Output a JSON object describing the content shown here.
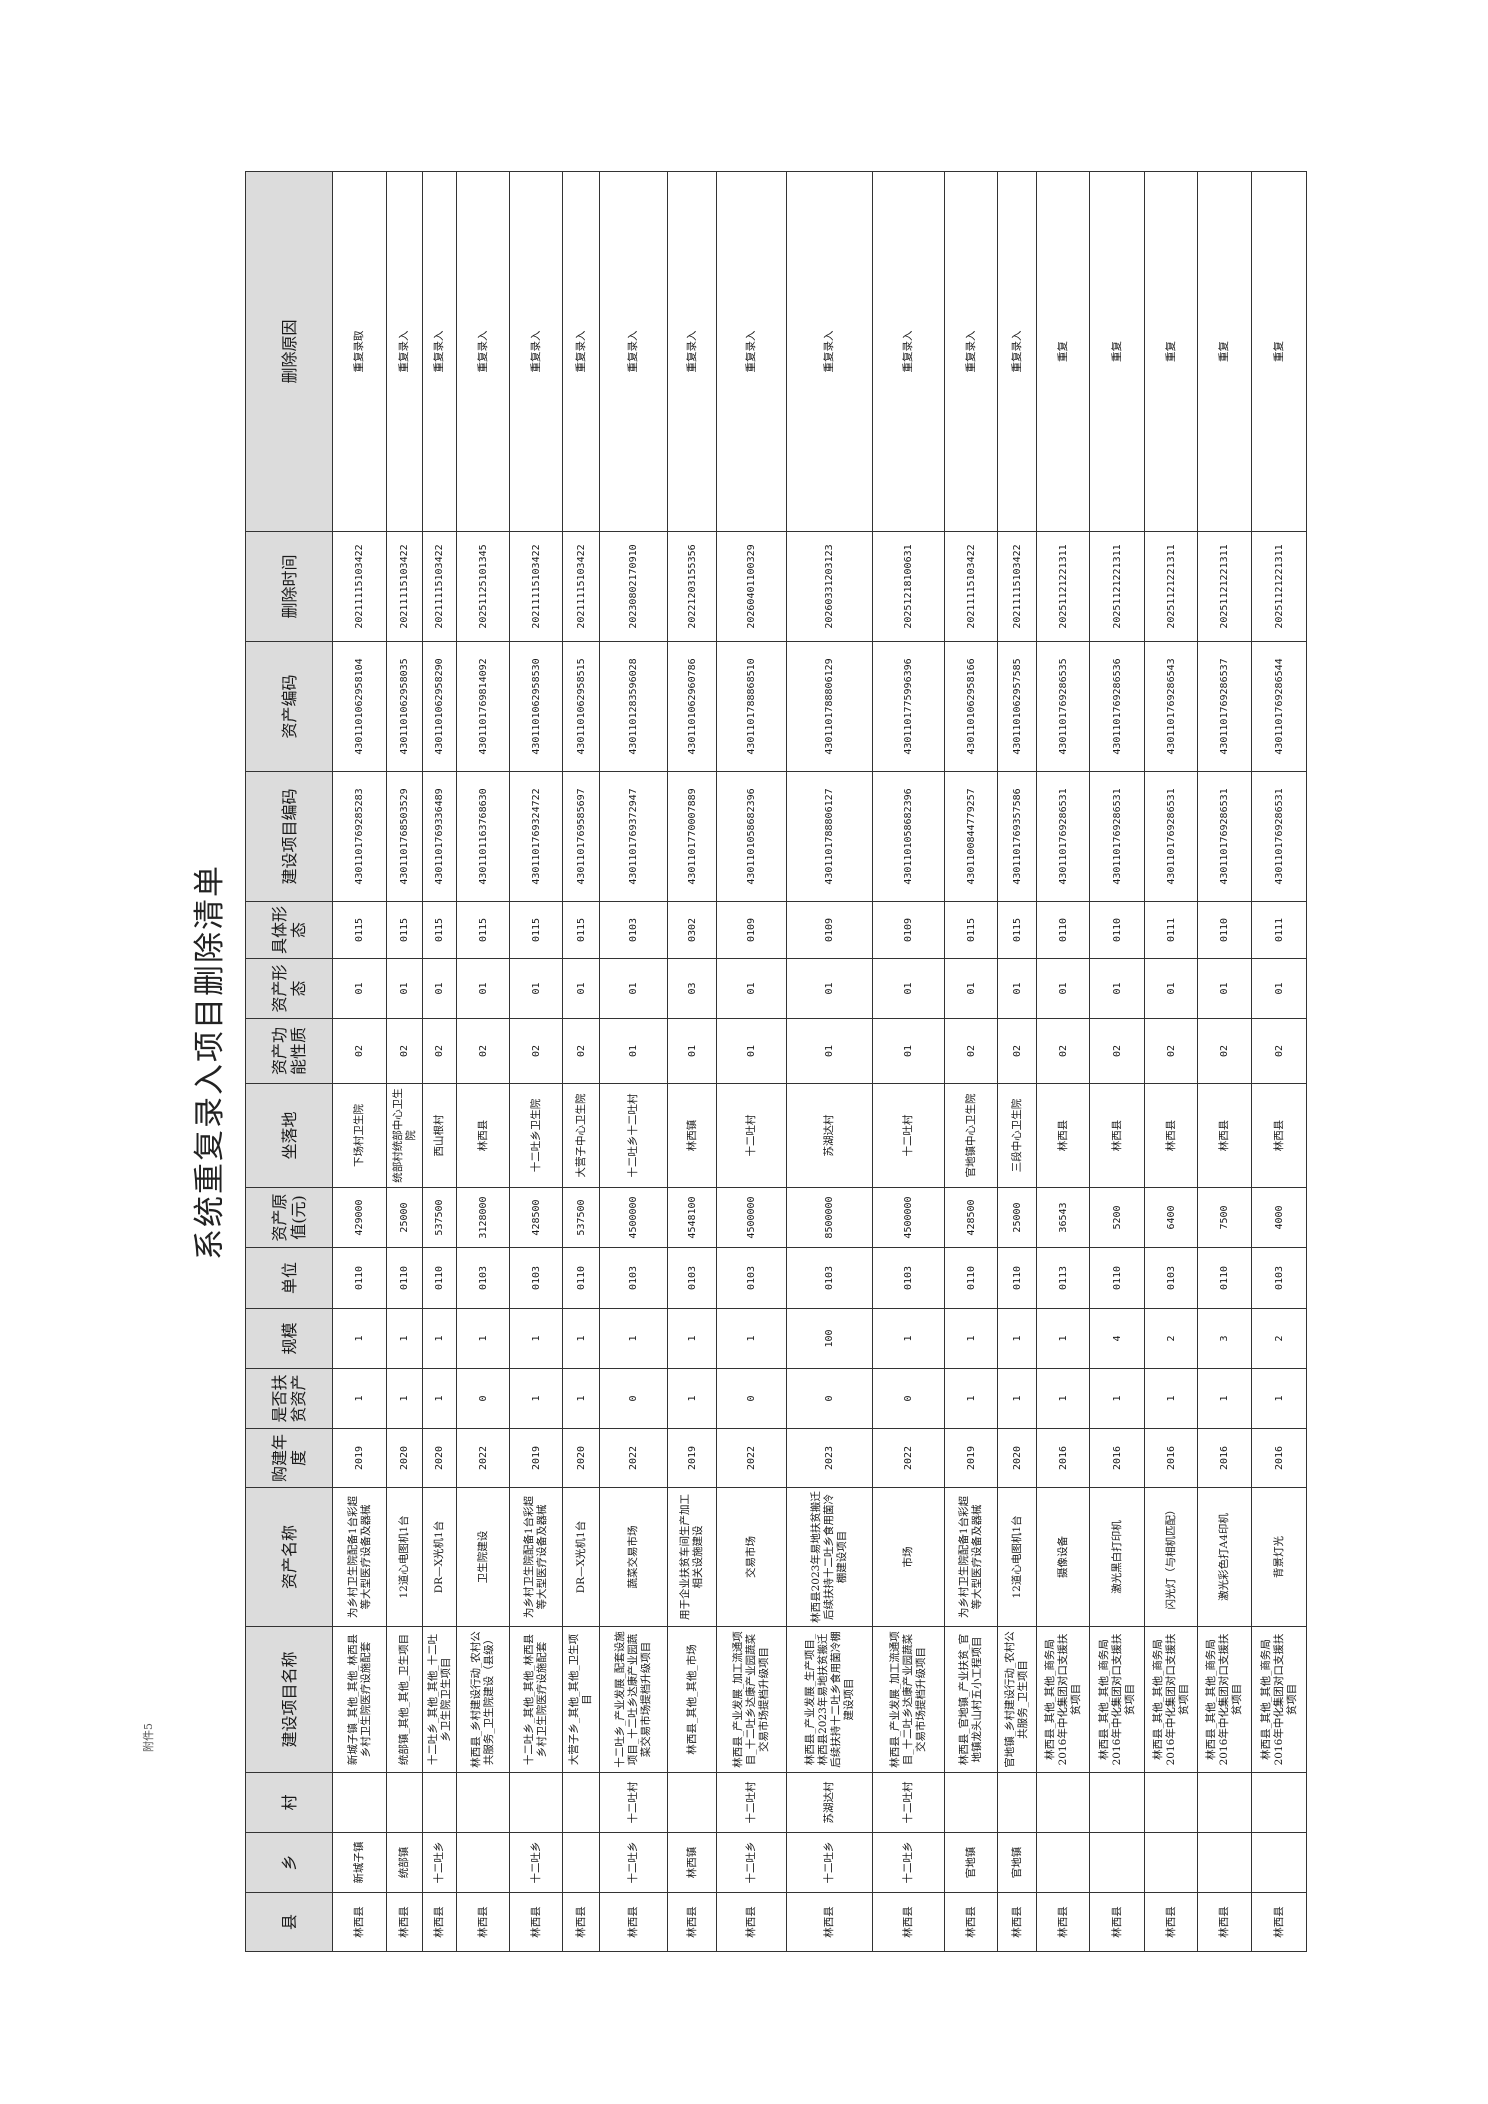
{
  "attachment_label": "附件5",
  "title": "系统重复录入项目删除清单",
  "headers": [
    "县",
    "乡",
    "村",
    "建设项目名称",
    "资产名称",
    "购建年度",
    "是否扶贫资产",
    "规模",
    "单位",
    "资产原值(元)",
    "坐落地",
    "资产功能性质",
    "资产形态",
    "具体形态",
    "建设项目编码",
    "资产编码",
    "删除时间",
    "删除原因"
  ],
  "rows": [
    [
      "林西县",
      "新城子镇",
      "",
      "新城子镇_其他_其他_林西县乡村卫生院医疗设施配套",
      "为乡村卫生院配备1台彩超等大型医疗设备及器械",
      "2019",
      "1",
      "1",
      "0110",
      "429000",
      "下场村卫生院",
      "02",
      "01",
      "0115",
      "4301101769285283",
      "4301101062958104",
      "20211115103422",
      "重复录取"
    ],
    [
      "林西县",
      "统部镇",
      "",
      "统部镇_其他_其他_卫生项目",
      "12道心电图机1台",
      "2020",
      "1",
      "1",
      "0110",
      "25000",
      "统部村统部中心卫生院",
      "02",
      "01",
      "0115",
      "4301101768503529",
      "4301101062958035",
      "20211115103422",
      "重复录入"
    ],
    [
      "林西县",
      "十二吐乡",
      "",
      "十二吐乡_其他_其他_十二吐乡卫生院卫生项目",
      "DR—X光机1台",
      "2020",
      "1",
      "1",
      "0110",
      "537500",
      "西山根村",
      "02",
      "01",
      "0115",
      "4301101769336489",
      "4301101062958290",
      "20211115103422",
      "重复录入"
    ],
    [
      "林西县",
      "",
      "",
      "林西县_乡村建设行动_农村公共服务_卫生院建设（县级）",
      "卫生院建设",
      "2022",
      "0",
      "1",
      "0103",
      "3128000",
      "林西县",
      "02",
      "01",
      "0115",
      "4301101163768630",
      "4301101769814092",
      "20251125101345",
      "重复录入"
    ],
    [
      "林西县",
      "十二吐乡",
      "",
      "十二吐乡_其他_其他_林西县乡村卫生院医疗设施配套",
      "为乡村卫生院配备1台彩超等大型医疗设备及器械",
      "2019",
      "1",
      "1",
      "0103",
      "428500",
      "十二吐乡卫生院",
      "02",
      "01",
      "0115",
      "4301101769324722",
      "4301101062958530",
      "20211115103422",
      "重复录入"
    ],
    [
      "林西县",
      "",
      "",
      "大营子乡_其他_其他_卫生项目",
      "DR—X光机1台",
      "2020",
      "1",
      "1",
      "0110",
      "537500",
      "大营子中心卫生院",
      "02",
      "01",
      "0115",
      "4301101769585697",
      "4301101062958515",
      "20211115103422",
      "重复录入"
    ],
    [
      "林西县",
      "十二吐乡",
      "十二吐村",
      "十二吐乡_产业发展_配套设施项目_十二吐乡达康产业园蔬菜交易市场提档升级项目",
      "蔬菜交易市场",
      "2022",
      "0",
      "1",
      "0103",
      "4500000",
      "十二吐乡十二吐村",
      "01",
      "01",
      "0103",
      "4301101769372947",
      "4301101283596028",
      "20230802170910",
      "重复录入"
    ],
    [
      "林西县",
      "林西镇",
      "",
      "林西县_其他_其他_市场",
      "用于企业扶贫车间生产加工相关设施建设",
      "2019",
      "1",
      "1",
      "0103",
      "4548100",
      "林西镇",
      "01",
      "03",
      "0302",
      "4301101770007889",
      "4301101062960786",
      "20221203155356",
      "重复录入"
    ],
    [
      "林西县",
      "十二吐乡",
      "十二吐村",
      "林西县_产业发展_加工流通项目_十二吐乡达康产业园蔬菜交易市场提档升级项目",
      "交易市场",
      "2022",
      "0",
      "1",
      "0103",
      "4500000",
      "十二吐村",
      "01",
      "01",
      "0109",
      "4301101058682396",
      "4301101788868510",
      "20260401100329",
      "重复录入"
    ],
    [
      "林西县",
      "十二吐乡",
      "苏湖达村",
      "林西县_产业发展_生产项目_林西县2023年易地扶贫搬迁后续扶持十二吐乡食用菌冷棚建设项目",
      "林西县2023年易地扶贫搬迁后续扶持十二吐乡食用菌冷棚建设项目",
      "2023",
      "0",
      "100",
      "0103",
      "8500000",
      "苏湖达村",
      "01",
      "01",
      "0109",
      "4301101788806127",
      "4301101788806129",
      "20260331203123",
      "重复录入"
    ],
    [
      "林西县",
      "十二吐乡",
      "十二吐村",
      "林西县_产业发展_加工流通项目_十二吐乡达康产业园蔬菜交易市场提档升级项目",
      "市场",
      "2022",
      "0",
      "1",
      "0103",
      "4500000",
      "十二吐村",
      "01",
      "01",
      "0109",
      "4301101058682396",
      "4301101775996396",
      "20251218100631",
      "重复录入"
    ],
    [
      "林西县",
      "官地镇",
      "",
      "林西县_官地镇_产业扶贫_官地镇龙头山村五小工程项目",
      "为乡村卫生院配备1台彩超等大型医疗设备及器械",
      "2019",
      "1",
      "1",
      "0110",
      "428500",
      "官地镇中心卫生院",
      "02",
      "01",
      "0115",
      "4301100844779257",
      "4301101062958166",
      "20211115103422",
      "重复录入"
    ],
    [
      "林西县",
      "官地镇",
      "",
      "官地镇_乡村建设行动_农村公共服务_卫生项目",
      "12道心电图机1台",
      "2020",
      "1",
      "1",
      "0110",
      "25000",
      "三段中心卫生院",
      "02",
      "01",
      "0115",
      "4301101769357586",
      "4301101062957585",
      "20211115103422",
      "重复录入"
    ],
    [
      "林西县",
      "",
      "",
      "林西县_其他_其他_商务局2016年中化集团对口支援扶贫项目",
      "摄像设备",
      "2016",
      "1",
      "1",
      "0113",
      "36543",
      "林西县",
      "02",
      "01",
      "0110",
      "4301101769286531",
      "4301101769286535",
      "20251121221311",
      "重复"
    ],
    [
      "林西县",
      "",
      "",
      "林西县_其他_其他_商务局2016年中化集团对口支援扶贫项目",
      "激光黑白打印机",
      "2016",
      "1",
      "4",
      "0110",
      "5200",
      "林西县",
      "02",
      "01",
      "0110",
      "4301101769286531",
      "4301101769286536",
      "20251121221311",
      "重复"
    ],
    [
      "林西县",
      "",
      "",
      "林西县_其他_其他_商务局2016年中化集团对口支援扶贫项目",
      "闪光灯（与相机匹配）",
      "2016",
      "1",
      "2",
      "0103",
      "6400",
      "林西县",
      "02",
      "01",
      "0111",
      "4301101769286531",
      "4301101769286543",
      "20251121221311",
      "重复"
    ],
    [
      "林西县",
      "",
      "",
      "林西县_其他_其他_商务局2016年中化集团对口支援扶贫项目",
      "激光彩色打A4印机",
      "2016",
      "1",
      "3",
      "0110",
      "7500",
      "林西县",
      "02",
      "01",
      "0110",
      "4301101769286531",
      "4301101769286537",
      "20251121221311",
      "重复"
    ],
    [
      "林西县",
      "",
      "",
      "林西县_其他_其他_商务局2016年中化集团对口支援扶贫项目",
      "背景灯光",
      "2016",
      "1",
      "2",
      "0103",
      "4000",
      "林西县",
      "02",
      "01",
      "0111",
      "4301101769286531",
      "4301101769286544",
      "20251121221311",
      "重复"
    ]
  ]
}
